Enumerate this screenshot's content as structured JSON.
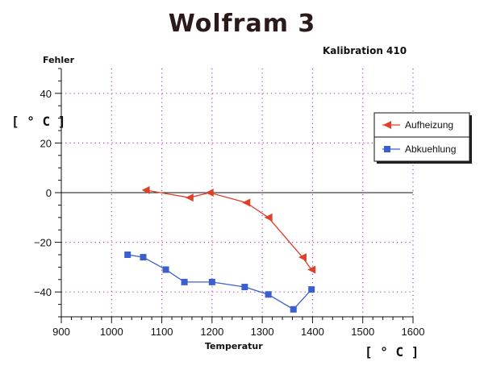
{
  "chart_data": {
    "type": "line",
    "title": "Wolfram 3",
    "subtitle": "Kalibration 410",
    "ylabel": "Fehler",
    "yunit": "[ ° C ]",
    "xlabel": "Temperatur",
    "xunit": "[ ° C ]",
    "xlim": [
      900,
      1600
    ],
    "ylim": [
      -50,
      50
    ],
    "xticks": [
      900,
      1000,
      1100,
      1200,
      1300,
      1400,
      1500,
      1600
    ],
    "yticks": [
      -40,
      -20,
      0,
      20,
      40
    ],
    "grid": true,
    "legend": "right",
    "series": [
      {
        "name": "Aufheizung",
        "color": "#e0402a",
        "marker": "triangle-left",
        "x": [
          1068,
          1155,
          1195,
          1268,
          1312,
          1380,
          1398
        ],
        "y": [
          1,
          -2,
          0,
          -4,
          -10,
          -26,
          -31
        ]
      },
      {
        "name": "Abkuehlung",
        "color": "#3a5fcf",
        "marker": "square",
        "x": [
          1032,
          1063,
          1108,
          1145,
          1200,
          1265,
          1312,
          1362,
          1398
        ],
        "y": [
          -25,
          -26,
          -31,
          -36,
          -36,
          -38,
          -41,
          -47,
          -39
        ]
      }
    ]
  }
}
